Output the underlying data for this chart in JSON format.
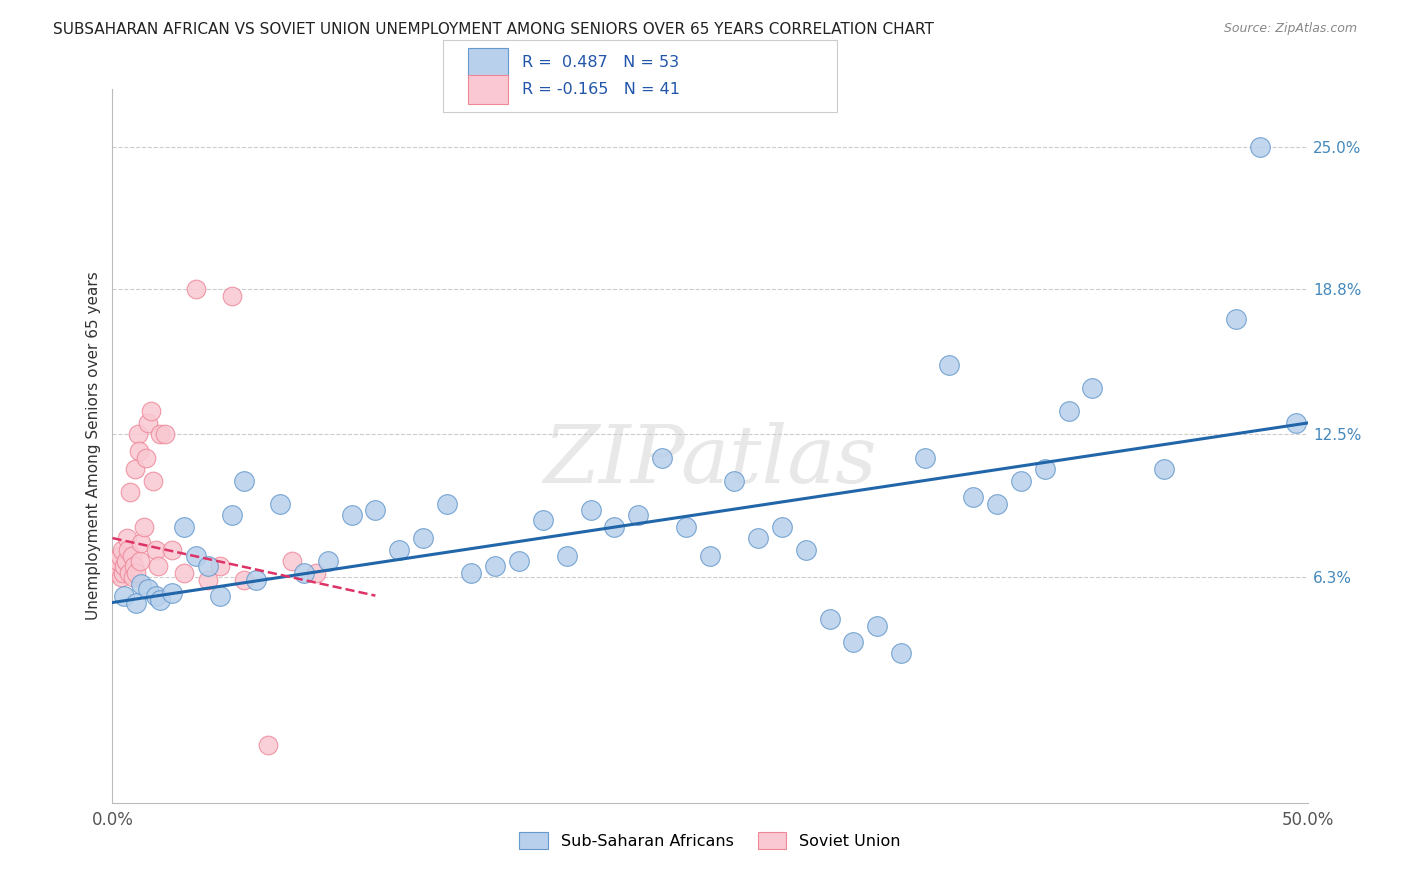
{
  "title": "SUBSAHARAN AFRICAN VS SOVIET UNION UNEMPLOYMENT AMONG SENIORS OVER 65 YEARS CORRELATION CHART",
  "source": "Source: ZipAtlas.com",
  "ylabel": "Unemployment Among Seniors over 65 years",
  "ytick_labels": [
    "6.3%",
    "12.5%",
    "18.8%",
    "25.0%"
  ],
  "ytick_values": [
    6.3,
    12.5,
    18.8,
    25.0
  ],
  "xlim": [
    0.0,
    50.0
  ],
  "ylim": [
    -3.5,
    27.5
  ],
  "legend1_label": "Sub-Saharan Africans",
  "legend2_label": "Soviet Union",
  "r1": 0.487,
  "n1": 53,
  "r2": -0.165,
  "n2": 41,
  "blue_face": "#b8d0eb",
  "blue_edge": "#6699cc",
  "pink_face": "#f9c8d2",
  "pink_edge": "#ee8899",
  "line_blue": "#2266aa",
  "line_pink": "#dd3366",
  "watermark": "ZIPatlas",
  "blue_scatter_x": [
    0.5,
    1.0,
    1.2,
    1.5,
    1.8,
    2.0,
    2.5,
    3.0,
    3.5,
    4.0,
    4.5,
    5.0,
    5.5,
    6.0,
    7.0,
    8.0,
    9.0,
    10.0,
    11.0,
    12.0,
    13.0,
    14.0,
    15.0,
    16.0,
    17.0,
    18.0,
    19.0,
    20.0,
    21.0,
    22.0,
    23.0,
    24.0,
    25.0,
    26.0,
    27.0,
    28.0,
    29.0,
    30.0,
    31.0,
    32.0,
    33.0,
    34.0,
    35.0,
    36.0,
    37.0,
    38.0,
    39.0,
    40.0,
    41.0,
    44.0,
    47.0,
    48.0,
    49.5
  ],
  "blue_scatter_y": [
    5.5,
    5.2,
    6.0,
    5.8,
    5.5,
    5.3,
    5.6,
    8.5,
    7.2,
    6.8,
    5.5,
    9.0,
    10.5,
    6.2,
    9.5,
    6.5,
    7.0,
    9.0,
    9.2,
    7.5,
    8.0,
    9.5,
    6.5,
    6.8,
    7.0,
    8.8,
    7.2,
    9.2,
    8.5,
    9.0,
    11.5,
    8.5,
    7.2,
    10.5,
    8.0,
    8.5,
    7.5,
    4.5,
    3.5,
    4.2,
    3.0,
    11.5,
    15.5,
    9.8,
    9.5,
    10.5,
    11.0,
    13.5,
    14.5,
    11.0,
    17.5,
    25.0,
    13.0
  ],
  "pink_scatter_x": [
    0.15,
    0.2,
    0.25,
    0.3,
    0.35,
    0.4,
    0.45,
    0.5,
    0.55,
    0.6,
    0.65,
    0.7,
    0.75,
    0.8,
    0.85,
    0.9,
    0.95,
    1.0,
    1.05,
    1.1,
    1.15,
    1.2,
    1.3,
    1.4,
    1.5,
    1.6,
    1.7,
    1.8,
    1.9,
    2.0,
    2.2,
    2.5,
    3.0,
    3.5,
    4.0,
    4.5,
    5.0,
    5.5,
    6.5,
    7.5,
    8.5
  ],
  "pink_scatter_y": [
    6.8,
    6.5,
    7.0,
    7.2,
    6.3,
    7.5,
    6.5,
    6.8,
    7.0,
    8.0,
    7.5,
    6.5,
    10.0,
    7.2,
    6.3,
    6.8,
    11.0,
    6.5,
    12.5,
    11.8,
    7.0,
    7.8,
    8.5,
    11.5,
    13.0,
    13.5,
    10.5,
    7.5,
    6.8,
    12.5,
    12.5,
    7.5,
    6.5,
    18.8,
    6.2,
    6.8,
    18.5,
    6.2,
    -1.0,
    7.0,
    6.5
  ],
  "blue_line_x0": 0.0,
  "blue_line_y0": 5.2,
  "blue_line_x1": 50.0,
  "blue_line_y1": 13.0,
  "pink_line_x0": 0.0,
  "pink_line_y0": 8.0,
  "pink_line_x1": 11.0,
  "pink_line_y1": 5.5
}
